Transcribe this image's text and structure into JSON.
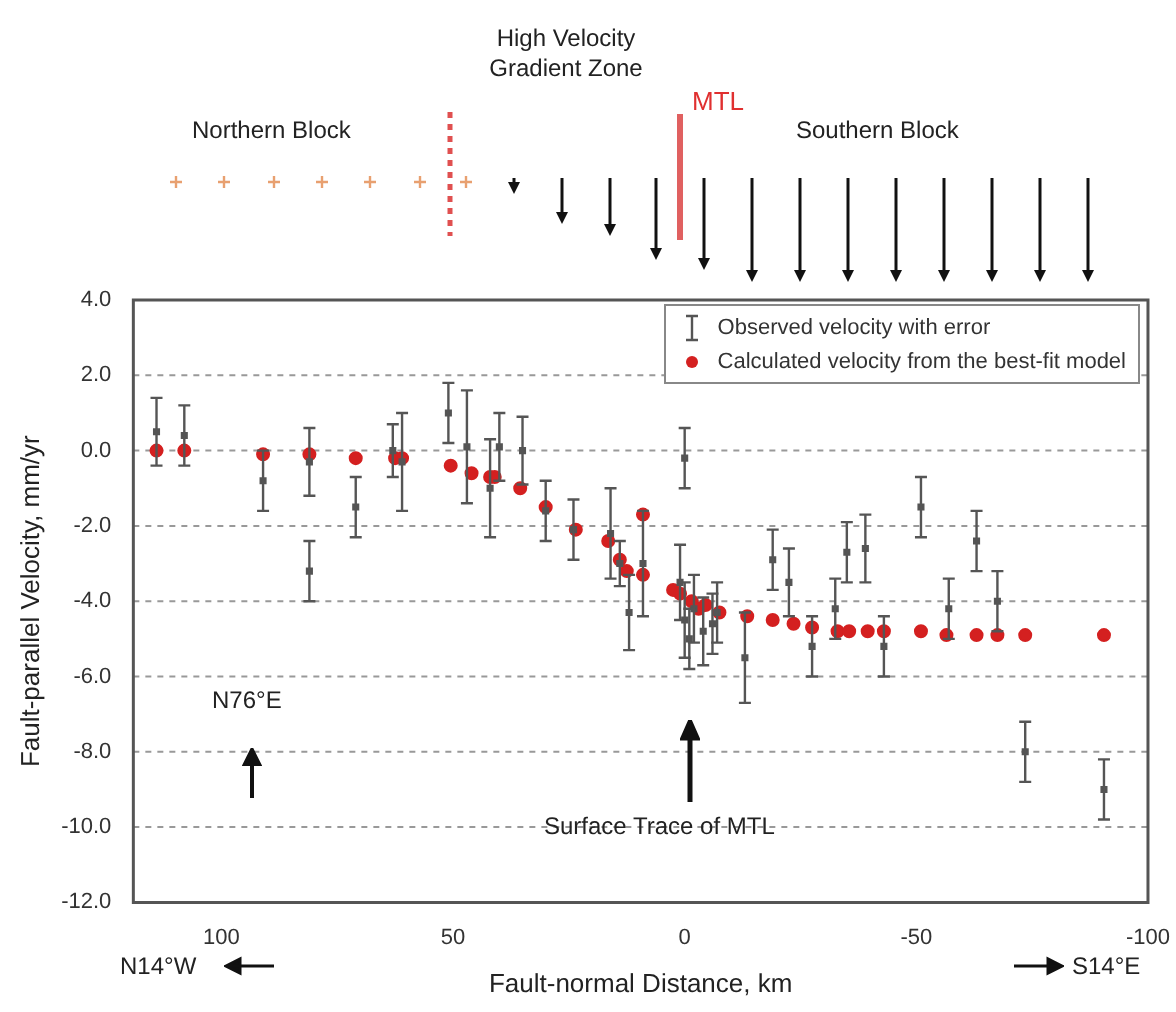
{
  "chart_data": {
    "type": "scatter",
    "xlabel": "Fault-normal Distance, km",
    "ylabel": "Fault-parallel Velocity, mm/yr",
    "xlim": [
      119,
      -100
    ],
    "xticks": [
      100,
      50,
      0,
      -50,
      -100
    ],
    "ylim": [
      -12,
      4
    ],
    "yticks": [
      {
        "value": 4,
        "label": "4.0"
      },
      {
        "value": 2,
        "label": "2.0"
      },
      {
        "value": 0,
        "label": "0.0"
      },
      {
        "value": -2,
        "label": "-2.0"
      },
      {
        "value": -4,
        "label": "-4.0"
      },
      {
        "value": -6,
        "label": "-6.0"
      },
      {
        "value": -8,
        "label": "-8.0"
      },
      {
        "value": -10,
        "label": "-10.0"
      },
      {
        "value": -12,
        "label": "-12.0"
      }
    ],
    "grid": "y",
    "legend": "top right",
    "series": [
      {
        "name": "Observed velocity with error",
        "color": "#555555",
        "marker": "square",
        "x": [
          114,
          108,
          91,
          81,
          81,
          71,
          63,
          61,
          51,
          47,
          42,
          40,
          35,
          30,
          24,
          16,
          14,
          12,
          9,
          0,
          1,
          0,
          -1,
          -2,
          -4,
          -6,
          -7,
          -13,
          -19,
          -22.5,
          -27.5,
          -32.5,
          -35,
          -39,
          -43,
          -51,
          -57,
          -63,
          -67.5,
          -73.5,
          -90.5
        ],
        "values": [
          0.5,
          0.4,
          -0.8,
          -0.3,
          -3.2,
          -1.5,
          0,
          -0.3,
          1,
          0.1,
          -1,
          0.1,
          0,
          -1.6,
          -2.1,
          -2.2,
          -3,
          -4.3,
          -3,
          -0.2,
          -3.5,
          -4.5,
          -5,
          -4.2,
          -4.8,
          -4.6,
          -4.3,
          -5.5,
          -2.9,
          -3.5,
          -5.2,
          -4.2,
          -2.7,
          -2.6,
          -5.2,
          -1.5,
          -4.2,
          -2.4,
          -4,
          -8,
          -9
        ],
        "errors": [
          0.9,
          0.8,
          0.8,
          0.9,
          0.8,
          0.8,
          0.7,
          1.3,
          0.8,
          1.5,
          1.3,
          0.9,
          0.9,
          0.8,
          0.8,
          1.2,
          0.6,
          1,
          1.4,
          0.8,
          1,
          1,
          0.8,
          0.9,
          0.9,
          0.8,
          0.8,
          1.2,
          0.8,
          0.9,
          0.8,
          0.8,
          0.8,
          0.9,
          0.8,
          0.8,
          0.8,
          0.8,
          0.8,
          0.8,
          0.8
        ]
      },
      {
        "name": "Calculated velocity from the best-fit model",
        "color": "#d42020",
        "marker": "circle",
        "x": [
          114,
          108,
          91,
          81,
          71,
          62.5,
          61,
          50.5,
          46,
          42,
          41,
          35.5,
          30,
          23.5,
          16.5,
          14,
          12.5,
          9,
          9,
          2.5,
          1,
          -1.5,
          -3,
          -4.5,
          -7.5,
          -13.5,
          -19,
          -23.5,
          -27.5,
          -33,
          -35.5,
          -39.5,
          -43,
          -51,
          -56.5,
          -63,
          -67.5,
          -73.5,
          -90.5
        ],
        "values": [
          0,
          0,
          -0.1,
          -0.1,
          -0.2,
          -0.2,
          -0.2,
          -0.4,
          -0.6,
          -0.7,
          -0.7,
          -1,
          -1.5,
          -2.1,
          -2.4,
          -2.9,
          -3.2,
          -3.3,
          -1.7,
          -3.7,
          -3.8,
          -4,
          -4.2,
          -4.1,
          -4.3,
          -4.4,
          -4.5,
          -4.6,
          -4.7,
          -4.8,
          -4.8,
          -4.8,
          -4.8,
          -4.8,
          -4.9,
          -4.9,
          -4.9,
          -4.9,
          -4.9
        ]
      }
    ],
    "annotations": [
      "N76°E",
      "Surface Trace of MTL",
      "Northern Block",
      "High Velocity Gradient Zone",
      "MTL",
      "Southern Block",
      "N14°W",
      "S14°E"
    ]
  }
}
